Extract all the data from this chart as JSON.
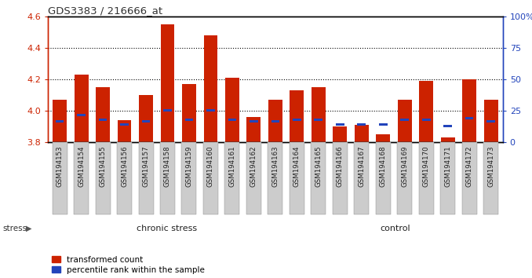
{
  "title": "GDS3383 / 216666_at",
  "samples": [
    "GSM194153",
    "GSM194154",
    "GSM194155",
    "GSM194156",
    "GSM194157",
    "GSM194158",
    "GSM194159",
    "GSM194160",
    "GSM194161",
    "GSM194162",
    "GSM194163",
    "GSM194164",
    "GSM194165",
    "GSM194166",
    "GSM194167",
    "GSM194168",
    "GSM194169",
    "GSM194170",
    "GSM194171",
    "GSM194172",
    "GSM194173"
  ],
  "red_values": [
    4.07,
    4.23,
    4.15,
    3.94,
    4.1,
    4.55,
    4.17,
    4.48,
    4.21,
    3.96,
    4.07,
    4.13,
    4.15,
    3.9,
    3.91,
    3.85,
    4.07,
    4.19,
    3.83,
    4.2,
    4.07
  ],
  "blue_values": [
    3.93,
    3.97,
    3.94,
    3.91,
    3.93,
    4.0,
    3.94,
    4.0,
    3.94,
    3.93,
    3.93,
    3.94,
    3.94,
    3.91,
    3.91,
    3.91,
    3.94,
    3.94,
    3.9,
    3.95,
    3.93
  ],
  "ymin": 3.8,
  "ymax": 4.6,
  "y_ticks": [
    3.8,
    4.0,
    4.2,
    4.4,
    4.6
  ],
  "right_yticks": [
    0,
    25,
    50,
    75,
    100
  ],
  "chronic_stress_count": 11,
  "bar_color": "#cc2200",
  "blue_color": "#2244bb",
  "bg_color": "#ffffff",
  "cs_color": "#bbeeaa",
  "ctrl_color": "#44cc44",
  "left_axis_color": "#cc2200",
  "right_axis_color": "#2244bb",
  "legend_labels": [
    "transformed count",
    "percentile rank within the sample"
  ]
}
